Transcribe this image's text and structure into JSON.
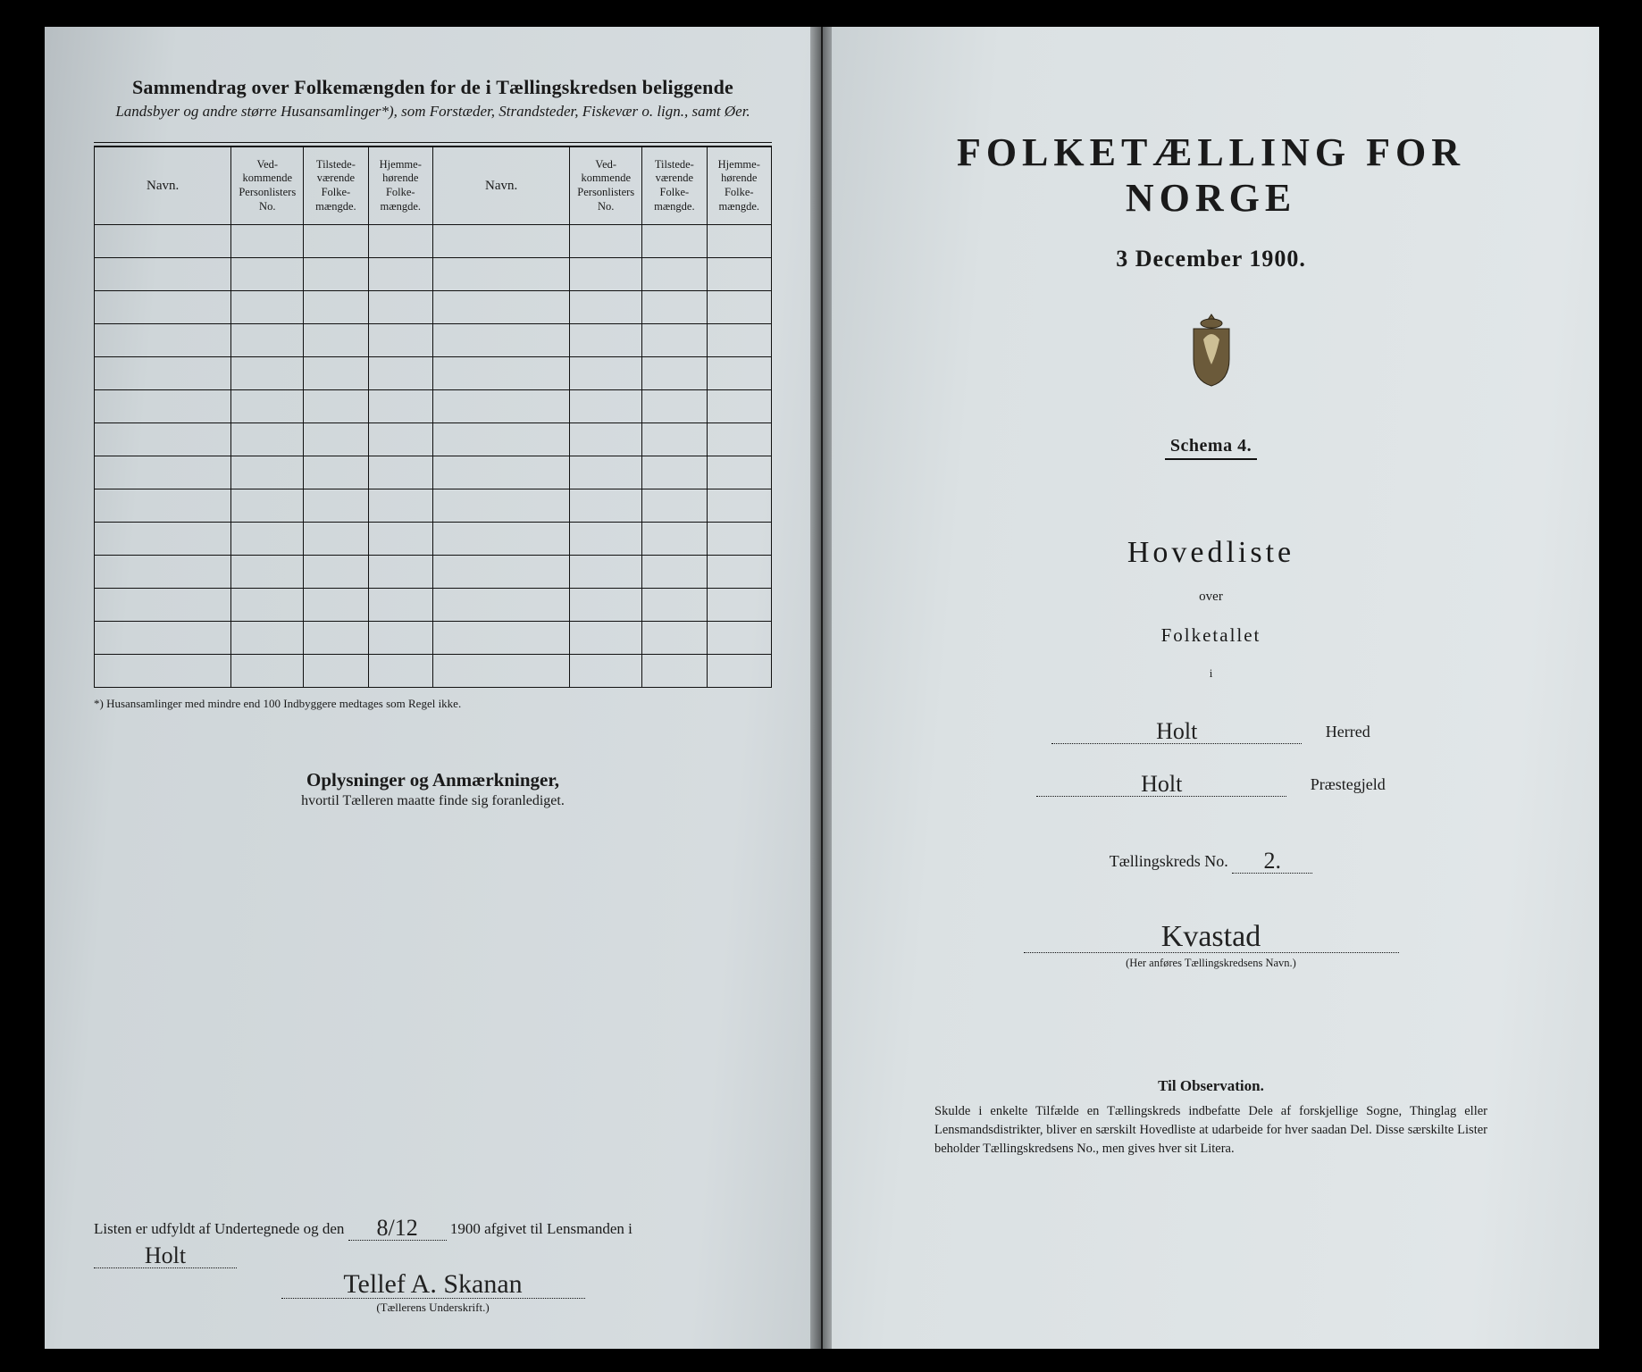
{
  "colors": {
    "ink": "#1a1a1a",
    "page_left_bg": "#d6dcdf",
    "page_right_bg": "#e1e6e8",
    "background": "#000000"
  },
  "left": {
    "title": "Sammendrag over Folkemængden for de i Tællingskredsen beliggende",
    "subtitle": "Landsbyer og andre større Husansamlinger*), som Forstæder, Strandsteder, Fiskevær o. lign., samt Øer.",
    "columns": [
      "Navn.",
      "Ved-\nkommende\nPersonlisters\nNo.",
      "Tilstede-\nværende\nFolke-\nmængde.",
      "Hjemme-\nhørende\nFolke-\nmængde.",
      "Navn.",
      "Ved-\nkommende\nPersonlisters\nNo.",
      "Tilstede-\nværende\nFolke-\nmængde.",
      "Hjemme-\nhørende\nFolke-\nmængde."
    ],
    "blank_rows": 14,
    "footnote": "*)  Husansamlinger med mindre end 100 Indbyggere medtages som Regel ikke.",
    "opl_title": "Oplysninger og Anmærkninger,",
    "opl_sub": "hvortil Tælleren maatte finde sig foranlediget.",
    "sign_pre": "Listen er udfyldt af Undertegnede og den",
    "sign_date": "8/12",
    "sign_mid": "1900 afgivet til Lensmanden i",
    "sign_place": "Holt",
    "signature": "Tellef A. Skanan",
    "sig_caption": "(Tællerens Underskrift.)"
  },
  "right": {
    "h1": "FOLKETÆLLING FOR NORGE",
    "date": "3 December 1900.",
    "schema": "Schema 4.",
    "hoved": "Hovedliste",
    "over": "over",
    "folket": "Folketallet",
    "i": "i",
    "herred_value": "Holt",
    "herred_label": "Herred",
    "praest_value": "Holt",
    "praest_label": "Præstegjeld",
    "kreds_label": "Tællingskreds No.",
    "kreds_no": "2.",
    "kreds_name": "Kvastad",
    "kreds_caption": "(Her anføres Tællingskredsens Navn.)",
    "obs_h": "Til Observation.",
    "obs_p": "Skulde i enkelte Tilfælde en Tællingskreds indbefatte Dele af forskjellige Sogne, Thinglag eller Lensmandsdistrikter, bliver en særskilt Hovedliste at udarbeide for hver saadan Del. Disse særskilte Lister beholder Tællingskredsens No., men gives hver sit Litera."
  }
}
